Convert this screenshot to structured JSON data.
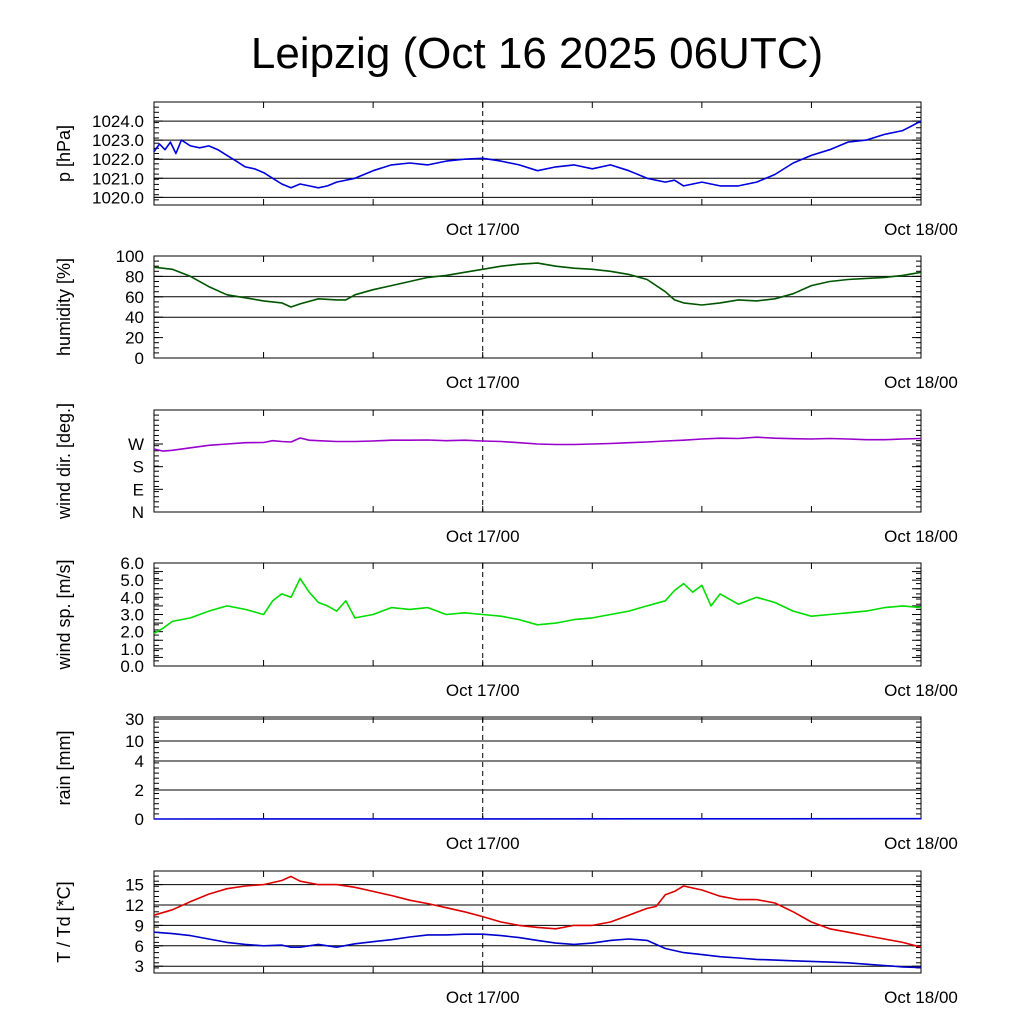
{
  "title": "Leipzig (Oct 16 2025 06UTC)",
  "x_ticks": [
    {
      "label": "Oct 17/00",
      "hours": 18
    },
    {
      "label": "Oct 18/00",
      "hours": 42
    }
  ],
  "chart_data": [
    {
      "type": "line",
      "ylabel": "p [hPa]",
      "ylim": [
        1019.6,
        1025.0
      ],
      "yticks": [
        1020.0,
        1021.0,
        1022.0,
        1023.0,
        1024.0
      ],
      "ytick_labels": [
        "1020.0",
        "1021.0",
        "1022.0",
        "1023.0",
        "1024.0"
      ],
      "grid_y": [
        1020.0,
        1021.0,
        1022.0,
        1023.0,
        1024.0
      ],
      "x_range_hours": [
        0,
        42
      ],
      "color": "#0000dd",
      "x": [
        0,
        0.3,
        0.6,
        0.9,
        1.2,
        1.5,
        2,
        2.5,
        3,
        3.5,
        4,
        4.5,
        5,
        5.5,
        6,
        6.5,
        7,
        7.5,
        8,
        8.5,
        9,
        9.5,
        10,
        11,
        12,
        13,
        14,
        15,
        16,
        17,
        18,
        19,
        20,
        21,
        22,
        23,
        24,
        25,
        26,
        27,
        28,
        28.5,
        29,
        30,
        31,
        32,
        33,
        34,
        35,
        36,
        37,
        38,
        39,
        40,
        41,
        42
      ],
      "y": [
        1022.4,
        1022.8,
        1022.5,
        1022.9,
        1022.3,
        1023.0,
        1022.7,
        1022.6,
        1022.7,
        1022.5,
        1022.2,
        1021.9,
        1021.6,
        1021.5,
        1021.3,
        1021.0,
        1020.7,
        1020.5,
        1020.7,
        1020.6,
        1020.5,
        1020.6,
        1020.8,
        1021.0,
        1021.4,
        1021.7,
        1021.8,
        1021.7,
        1021.9,
        1022.0,
        1022.05,
        1021.9,
        1021.7,
        1021.4,
        1021.6,
        1021.7,
        1021.5,
        1021.7,
        1021.4,
        1021.0,
        1020.8,
        1020.9,
        1020.6,
        1020.8,
        1020.6,
        1020.6,
        1020.8,
        1021.2,
        1021.8,
        1022.2,
        1022.5,
        1022.9,
        1023.0,
        1023.3,
        1023.5,
        1024.0
      ]
    },
    {
      "type": "line",
      "ylabel": "humidity [%]",
      "ylim": [
        0,
        100
      ],
      "yticks": [
        0,
        20,
        40,
        60,
        80,
        100
      ],
      "ytick_labels": [
        "0",
        "20",
        "40",
        "60",
        "80",
        "100"
      ],
      "grid_y": [
        40,
        60,
        80
      ],
      "x_range_hours": [
        0,
        42
      ],
      "color": "#005500",
      "x": [
        0,
        1,
        2,
        3,
        4,
        5,
        6,
        7,
        7.5,
        8,
        9,
        10,
        10.5,
        11,
        12,
        13,
        14,
        15,
        16,
        17,
        18,
        19,
        20,
        21,
        22,
        23,
        24,
        25,
        26,
        27,
        28,
        28.5,
        29,
        30,
        31,
        32,
        33,
        34,
        35,
        36,
        37,
        38,
        39,
        40,
        41,
        42
      ],
      "y": [
        89,
        87,
        80,
        70,
        62,
        59,
        56,
        54,
        50,
        53,
        58,
        57,
        57,
        62,
        67,
        71,
        75,
        79,
        81,
        84,
        87,
        90,
        92,
        93,
        90,
        88,
        87,
        85,
        82,
        77,
        65,
        57,
        54,
        52,
        54,
        57,
        56,
        58,
        63,
        71,
        75,
        77,
        78,
        79,
        81,
        84
      ]
    },
    {
      "type": "line",
      "ylabel": "wind dir. [deg.]",
      "ylim": [
        0,
        405
      ],
      "yticks": [
        0,
        90,
        180,
        270
      ],
      "ytick_labels": [
        "N",
        "E",
        "S",
        "W"
      ],
      "grid_y": [],
      "x_range_hours": [
        0,
        42
      ],
      "color": "#9900cc",
      "x": [
        0,
        0.5,
        1,
        2,
        3,
        4,
        5,
        6,
        6.5,
        7,
        7.5,
        8,
        8.5,
        9,
        10,
        11,
        12,
        13,
        14,
        15,
        16,
        17,
        18,
        19,
        20,
        21,
        22,
        23,
        24,
        25,
        26,
        27,
        28,
        29,
        30,
        31,
        32,
        33,
        34,
        35,
        36,
        37,
        38,
        39,
        40,
        41,
        42
      ],
      "y": [
        250,
        242,
        245,
        255,
        265,
        270,
        275,
        276,
        283,
        280,
        278,
        294,
        285,
        283,
        280,
        280,
        282,
        285,
        285,
        286,
        283,
        285,
        282,
        280,
        275,
        270,
        268,
        268,
        270,
        272,
        275,
        278,
        282,
        285,
        290,
        293,
        292,
        297,
        293,
        291,
        290,
        292,
        290,
        287,
        287,
        290,
        292
      ]
    },
    {
      "type": "line",
      "ylabel": "wind sp. [m/s]",
      "ylim": [
        0,
        6.0
      ],
      "yticks": [
        0.0,
        0.5,
        1.0,
        1.5,
        2.0,
        2.5,
        3.0,
        3.5,
        4.0,
        4.5,
        5.0,
        5.5,
        6.0
      ],
      "ytick_labels": [
        "0.0",
        "",
        "1.0",
        "",
        "2.0",
        "",
        "3.0",
        "",
        "4.0",
        "",
        "5.0",
        "",
        "6.0"
      ],
      "grid_y": [],
      "x_range_hours": [
        0,
        42
      ],
      "color": "#00dd00",
      "x": [
        0,
        0.5,
        1,
        2,
        3,
        4,
        5,
        6,
        6.5,
        7,
        7.5,
        8,
        8.5,
        9,
        9.5,
        10,
        10.5,
        11,
        12,
        13,
        14,
        15,
        16,
        17,
        18,
        19,
        20,
        21,
        22,
        23,
        24,
        25,
        26,
        27,
        28,
        28.5,
        29,
        29.5,
        30,
        30.5,
        31,
        32,
        33,
        34,
        35,
        36,
        37,
        38,
        39,
        40,
        41,
        42
      ],
      "y": [
        1.9,
        2.2,
        2.6,
        2.8,
        3.2,
        3.5,
        3.3,
        3.0,
        3.8,
        4.2,
        4.0,
        5.1,
        4.3,
        3.7,
        3.5,
        3.2,
        3.8,
        2.8,
        3.0,
        3.4,
        3.3,
        3.4,
        3.0,
        3.1,
        3.0,
        2.9,
        2.7,
        2.4,
        2.5,
        2.7,
        2.8,
        3.0,
        3.2,
        3.5,
        3.8,
        4.4,
        4.8,
        4.3,
        4.7,
        3.5,
        4.2,
        3.6,
        4.0,
        3.7,
        3.2,
        2.9,
        3.0,
        3.1,
        3.2,
        3.4,
        3.5,
        3.4
      ]
    },
    {
      "type": "line",
      "ylabel": "rain [mm]",
      "ylim": [
        0,
        30
      ],
      "scale": "piecewise",
      "yticks": [
        0,
        2,
        4,
        10,
        30
      ],
      "ytick_labels": [
        "0",
        "2",
        "4",
        "10",
        "30"
      ],
      "grid_y": [
        2,
        4,
        10,
        30
      ],
      "x_range_hours": [
        0,
        42
      ],
      "color": "#0000dd",
      "x": [
        0,
        18,
        42
      ],
      "y": [
        0,
        0.01,
        0.02
      ]
    },
    {
      "type": "line",
      "ylabel": "T / Td [*C]",
      "ylim": [
        2,
        17
      ],
      "yticks": [
        3,
        6,
        9,
        12,
        15
      ],
      "ytick_labels": [
        "3",
        "6",
        "9",
        "12",
        "15"
      ],
      "grid_y": [
        3,
        6,
        9,
        12,
        15
      ],
      "x_range_hours": [
        0,
        42
      ],
      "series": [
        {
          "color": "#dd0000",
          "x": [
            0,
            1,
            2,
            3,
            4,
            5,
            6,
            7,
            7.5,
            8,
            9,
            10,
            11,
            12,
            13,
            14,
            15,
            16,
            17,
            18,
            19,
            20,
            21,
            22,
            23,
            24,
            25,
            26,
            27,
            27.5,
            28,
            28.5,
            29,
            30,
            31,
            32,
            33,
            34,
            35,
            36,
            37,
            38,
            39,
            40,
            41,
            42
          ],
          "y": [
            10.5,
            11.3,
            12.5,
            13.6,
            14.4,
            14.8,
            15.0,
            15.6,
            16.2,
            15.5,
            15.0,
            15.0,
            14.6,
            14.0,
            13.4,
            12.7,
            12.2,
            11.6,
            11.0,
            10.3,
            9.5,
            9.0,
            8.7,
            8.5,
            9.0,
            9.0,
            9.5,
            10.5,
            11.5,
            11.8,
            13.5,
            14.0,
            14.8,
            14.2,
            13.3,
            12.8,
            12.8,
            12.3,
            11.0,
            9.5,
            8.5,
            8.0,
            7.5,
            7.0,
            6.5,
            5.8
          ]
        },
        {
          "color": "#0000cc",
          "x": [
            0,
            1,
            2,
            3,
            4,
            5,
            6,
            7,
            7.5,
            8,
            9,
            10,
            11,
            12,
            13,
            14,
            15,
            16,
            17,
            18,
            19,
            20,
            21,
            22,
            23,
            24,
            25,
            26,
            27,
            28,
            29,
            30,
            31,
            32,
            33,
            34,
            35,
            36,
            37,
            38,
            39,
            40,
            41,
            42
          ],
          "y": [
            8.0,
            7.8,
            7.5,
            7.0,
            6.5,
            6.2,
            6.0,
            6.1,
            5.8,
            5.8,
            6.2,
            5.8,
            6.3,
            6.6,
            6.9,
            7.3,
            7.6,
            7.6,
            7.7,
            7.7,
            7.5,
            7.2,
            6.8,
            6.4,
            6.2,
            6.4,
            6.8,
            7.0,
            6.8,
            5.6,
            5.0,
            4.7,
            4.4,
            4.2,
            4.0,
            3.9,
            3.8,
            3.7,
            3.6,
            3.5,
            3.3,
            3.1,
            2.9,
            2.8
          ]
        }
      ]
    }
  ]
}
